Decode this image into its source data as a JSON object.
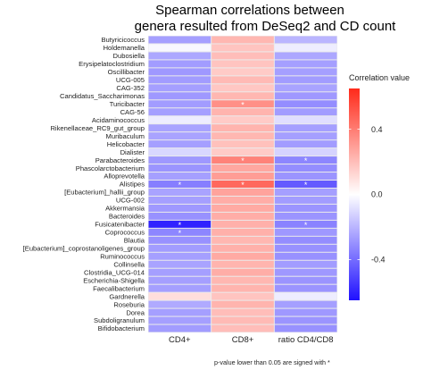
{
  "chart_data": {
    "type": "heatmap",
    "title_lines": [
      "Spearman correlations between",
      "genera resulted from DeSeq2 and CD count"
    ],
    "columns": [
      "CD4+",
      "CD8+",
      "ratio CD4/CD8"
    ],
    "rows": [
      "Butyricicoccus",
      "Holdemanella",
      "Dubosiella",
      "Erysipelatoclostridium",
      "Oscillibacter",
      "UCG-005",
      "CAG-352",
      "Candidatus_Saccharimonas",
      "Turicibacter",
      "CAG-56",
      "Acidaminococcus",
      "Rikenellaceae_RC9_gut_group",
      "Muribaculum",
      "Helicobacter",
      "Dialister",
      "Parabacteroides",
      "Phascolarctobacterium",
      "Alloprevotella",
      "Alistipes",
      "[Eubacterium]_hallii_group",
      "UCG-002",
      "Akkermansia",
      "Bacteroides",
      "Fusicatenibacter",
      "Coprococcus",
      "Blautia",
      "[Eubacterium]_coprostanoligenes_group",
      "Ruminococcus",
      "Collinsella",
      "Clostridia_UCG-014",
      "Escherichia-Shigella",
      "Faecalibacterium",
      "Gardnerella",
      "Roseburia",
      "Dorea",
      "Subdoligranulum",
      "Bifidobacterium"
    ],
    "values": [
      [
        -0.26,
        0.22,
        -0.2
      ],
      [
        -0.02,
        0.18,
        -0.05
      ],
      [
        -0.24,
        0.2,
        -0.24
      ],
      [
        -0.27,
        0.18,
        -0.26
      ],
      [
        -0.28,
        0.16,
        -0.26
      ],
      [
        -0.27,
        0.21,
        -0.27
      ],
      [
        -0.26,
        0.17,
        -0.25
      ],
      [
        -0.28,
        0.22,
        -0.28
      ],
      [
        -0.27,
        0.34,
        -0.31
      ],
      [
        -0.26,
        0.23,
        -0.27
      ],
      [
        -0.05,
        0.16,
        -0.09
      ],
      [
        -0.25,
        0.23,
        -0.26
      ],
      [
        -0.25,
        0.22,
        -0.26
      ],
      [
        -0.26,
        0.19,
        -0.27
      ],
      [
        -0.11,
        0.16,
        -0.12
      ],
      [
        -0.28,
        0.38,
        -0.33
      ],
      [
        -0.29,
        0.27,
        -0.31
      ],
      [
        -0.26,
        0.3,
        -0.29
      ],
      [
        -0.35,
        0.46,
        -0.45
      ],
      [
        -0.25,
        0.28,
        -0.26
      ],
      [
        -0.26,
        0.25,
        -0.27
      ],
      [
        -0.28,
        0.26,
        -0.29
      ],
      [
        -0.3,
        0.25,
        -0.29
      ],
      [
        -0.6,
        0.24,
        -0.34
      ],
      [
        -0.33,
        0.24,
        -0.28
      ],
      [
        -0.3,
        0.22,
        -0.31
      ],
      [
        -0.27,
        0.24,
        -0.3
      ],
      [
        -0.26,
        0.26,
        -0.3
      ],
      [
        -0.25,
        0.23,
        -0.27
      ],
      [
        -0.26,
        0.25,
        -0.28
      ],
      [
        -0.26,
        0.22,
        -0.29
      ],
      [
        -0.26,
        0.23,
        -0.29
      ],
      [
        0.1,
        0.18,
        -0.05
      ],
      [
        -0.23,
        0.23,
        -0.26
      ],
      [
        -0.26,
        0.2,
        -0.28
      ],
      [
        -0.26,
        0.21,
        -0.29
      ],
      [
        -0.27,
        0.2,
        -0.3
      ]
    ],
    "significant": [
      [
        8,
        1
      ],
      [
        15,
        1
      ],
      [
        15,
        2
      ],
      [
        18,
        0
      ],
      [
        18,
        1
      ],
      [
        18,
        2
      ],
      [
        23,
        0
      ],
      [
        23,
        2
      ],
      [
        24,
        0
      ]
    ],
    "significance_symbol": "*",
    "legend": {
      "title": "Correlation value",
      "placement": "right",
      "ticks": [
        0.4,
        0.0,
        -0.4
      ],
      "tick_labels": [
        "0.4",
        "0.0",
        "-0.4"
      ],
      "range": [
        -0.65,
        0.65
      ],
      "colors": {
        "low": "#1f10ff",
        "mid": "#ffffff",
        "high": "#ff2a1a"
      }
    },
    "footnote": "p-value lower than 0.05 are signed with *",
    "background": "#ebebeb",
    "grid": true
  }
}
